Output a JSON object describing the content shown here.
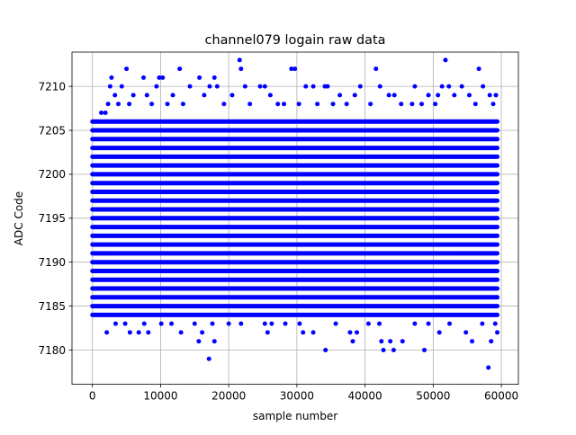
{
  "chart_data": {
    "type": "scatter",
    "title": "channel079 logain raw data",
    "xlabel": "sample number",
    "ylabel": "ADC Code",
    "xlim": [
      -3000,
      62500
    ],
    "ylim": [
      7176.1,
      7213.9
    ],
    "xticks": [
      0,
      10000,
      20000,
      30000,
      40000,
      50000,
      60000
    ],
    "xtick_labels": [
      "0",
      "10000",
      "20000",
      "30000",
      "40000",
      "50000",
      "60000"
    ],
    "yticks": [
      7180,
      7185,
      7190,
      7195,
      7200,
      7205,
      7210
    ],
    "ytick_labels": [
      "7180",
      "7185",
      "7190",
      "7195",
      "7200",
      "7205",
      "7210"
    ],
    "grid": true,
    "marker_color": "#0000ff",
    "dense_band": {
      "x_range": [
        0,
        59400
      ],
      "y_range": [
        7184,
        7206
      ]
    },
    "series": [
      {
        "points": [
          [
            1300,
            7207
          ],
          [
            1900,
            7207
          ],
          [
            2300,
            7208
          ],
          [
            2600,
            7210
          ],
          [
            2800,
            7211
          ],
          [
            3300,
            7209
          ],
          [
            3800,
            7208
          ],
          [
            4300,
            7210
          ],
          [
            5000,
            7212
          ],
          [
            5400,
            7208
          ],
          [
            6000,
            7209
          ],
          [
            7500,
            7211
          ],
          [
            8000,
            7209
          ],
          [
            8700,
            7208
          ],
          [
            9400,
            7210
          ],
          [
            9800,
            7211
          ],
          [
            10300,
            7211
          ],
          [
            11000,
            7208
          ],
          [
            11800,
            7209
          ],
          [
            12800,
            7212
          ],
          [
            13300,
            7208
          ],
          [
            14300,
            7210
          ],
          [
            15700,
            7211
          ],
          [
            16400,
            7209
          ],
          [
            17200,
            7210
          ],
          [
            17900,
            7211
          ],
          [
            18300,
            7210
          ],
          [
            19300,
            7208
          ],
          [
            20500,
            7209
          ],
          [
            21600,
            7213
          ],
          [
            21800,
            7212
          ],
          [
            22400,
            7210
          ],
          [
            23100,
            7208
          ],
          [
            24600,
            7210
          ],
          [
            25300,
            7210
          ],
          [
            26100,
            7209
          ],
          [
            27200,
            7208
          ],
          [
            28100,
            7208
          ],
          [
            29200,
            7212
          ],
          [
            29700,
            7212
          ],
          [
            30300,
            7208
          ],
          [
            31300,
            7210
          ],
          [
            32400,
            7210
          ],
          [
            33000,
            7208
          ],
          [
            34100,
            7210
          ],
          [
            34500,
            7210
          ],
          [
            35300,
            7208
          ],
          [
            36300,
            7209
          ],
          [
            37300,
            7208
          ],
          [
            38500,
            7209
          ],
          [
            39300,
            7210
          ],
          [
            40800,
            7208
          ],
          [
            41600,
            7212
          ],
          [
            42200,
            7210
          ],
          [
            43500,
            7209
          ],
          [
            44300,
            7209
          ],
          [
            45300,
            7208
          ],
          [
            46900,
            7208
          ],
          [
            47300,
            7210
          ],
          [
            48300,
            7208
          ],
          [
            49300,
            7209
          ],
          [
            50300,
            7208
          ],
          [
            50700,
            7209
          ],
          [
            51300,
            7210
          ],
          [
            51800,
            7213
          ],
          [
            52300,
            7210
          ],
          [
            53100,
            7209
          ],
          [
            54200,
            7210
          ],
          [
            55300,
            7209
          ],
          [
            56200,
            7208
          ],
          [
            56700,
            7212
          ],
          [
            57300,
            7210
          ],
          [
            58300,
            7209
          ],
          [
            58800,
            7208
          ],
          [
            59200,
            7209
          ],
          [
            2100,
            7182
          ],
          [
            3400,
            7183
          ],
          [
            4800,
            7183
          ],
          [
            5500,
            7182
          ],
          [
            6800,
            7182
          ],
          [
            7600,
            7183
          ],
          [
            8200,
            7182
          ],
          [
            10100,
            7183
          ],
          [
            11600,
            7183
          ],
          [
            13000,
            7182
          ],
          [
            15000,
            7183
          ],
          [
            15600,
            7181
          ],
          [
            16100,
            7182
          ],
          [
            17100,
            7179
          ],
          [
            17600,
            7183
          ],
          [
            17900,
            7181
          ],
          [
            20000,
            7183
          ],
          [
            21800,
            7183
          ],
          [
            25300,
            7183
          ],
          [
            25700,
            7182
          ],
          [
            26300,
            7183
          ],
          [
            28300,
            7183
          ],
          [
            30400,
            7183
          ],
          [
            30900,
            7182
          ],
          [
            32400,
            7182
          ],
          [
            34200,
            7180
          ],
          [
            35700,
            7183
          ],
          [
            37800,
            7182
          ],
          [
            38200,
            7181
          ],
          [
            38800,
            7182
          ],
          [
            40500,
            7183
          ],
          [
            42100,
            7183
          ],
          [
            42400,
            7181
          ],
          [
            42700,
            7180
          ],
          [
            43700,
            7181
          ],
          [
            44200,
            7180
          ],
          [
            45500,
            7181
          ],
          [
            47300,
            7183
          ],
          [
            48700,
            7180
          ],
          [
            49300,
            7183
          ],
          [
            50900,
            7182
          ],
          [
            52400,
            7183
          ],
          [
            54800,
            7182
          ],
          [
            55700,
            7181
          ],
          [
            57200,
            7183
          ],
          [
            58100,
            7178
          ],
          [
            58500,
            7181
          ],
          [
            59100,
            7183
          ],
          [
            59400,
            7182
          ]
        ]
      }
    ]
  }
}
